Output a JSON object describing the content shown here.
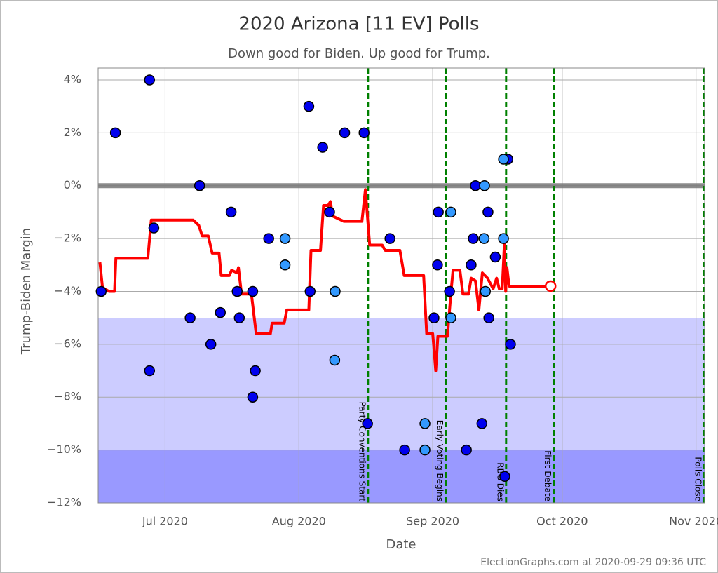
{
  "chart_data": {
    "type": "scatter",
    "title": "2020 Arizona [11 EV] Polls",
    "subtitle": "Down good for Biden. Up good for Trump.",
    "x_label": "Date",
    "y_label": "Trump-Biden Margin",
    "footer": "ElectionGraphs.com at 2020-09-29 09:36 UTC",
    "xlim": [
      167.5,
      308.0
    ],
    "ylim": [
      -12,
      4.45
    ],
    "xticks": [
      {
        "value": 183,
        "label": "Jul 2020"
      },
      {
        "value": 214,
        "label": "Aug 2020"
      },
      {
        "value": 245,
        "label": "Sep 2020"
      },
      {
        "value": 275,
        "label": "Oct 2020"
      },
      {
        "value": 306,
        "label": "Nov 2020"
      }
    ],
    "yticks": [
      {
        "value": 4,
        "label": "4%"
      },
      {
        "value": 2,
        "label": "2%"
      },
      {
        "value": 0,
        "label": "0%"
      },
      {
        "value": -2,
        "label": "−2%"
      },
      {
        "value": -4,
        "label": "−4%"
      },
      {
        "value": -6,
        "label": "−6%"
      },
      {
        "value": -8,
        "label": "−8%"
      },
      {
        "value": -10,
        "label": "−10%"
      },
      {
        "value": -12,
        "label": "−12%"
      }
    ],
    "grid": true,
    "shading": [
      {
        "from": -5,
        "to": -10,
        "color": "#ccccff"
      },
      {
        "from": -10,
        "to": -12,
        "color": "#9999ff"
      }
    ],
    "zero_line": {
      "value": 0,
      "color": "#777777"
    },
    "events": [
      {
        "x": 230,
        "label": "Party Conventions Start"
      },
      {
        "x": 248,
        "label": "Early Voting Begins"
      },
      {
        "x": 262,
        "label": "RBG Dies"
      },
      {
        "x": 273,
        "label": "First Debate"
      },
      {
        "x": 308,
        "label": "Polls Close"
      }
    ],
    "series": [
      {
        "mode": "markers",
        "color": "#0000ee",
        "x": [
          168.2,
          171.5,
          179.4,
          179.4,
          180.4,
          188.8,
          191,
          193.6,
          195.8,
          198.3,
          199.7,
          200.2,
          203.3,
          203.3,
          203.9,
          207,
          216.3,
          216.6,
          219.5,
          221.1,
          224.6,
          229.1,
          229.9,
          235.1,
          238.5,
          245.3,
          246.1,
          246.3,
          248.9,
          252.8,
          253.9,
          254.4,
          254.9,
          256.4,
          257.8,
          258,
          259.5,
          262.4,
          261.7,
          263
        ],
        "y": [
          -4,
          2,
          4,
          -7,
          -1.6,
          -5,
          0,
          -6,
          -4.8,
          -1,
          -4,
          -5,
          -4,
          -8,
          -7,
          -2,
          3,
          -4,
          1.45,
          -1,
          2,
          2,
          -9,
          -2,
          -10,
          -5,
          -3,
          -1,
          -4,
          -10,
          -3,
          -2,
          0,
          -9,
          -1,
          -5,
          -2.7,
          1,
          -11,
          -6
        ]
      },
      {
        "mode": "markers",
        "color": "#3399ff",
        "x": [
          210.8,
          210.8,
          222.4,
          222.3,
          243.2,
          243.2,
          249.2,
          249.2,
          257,
          256.9,
          257.2,
          261.4,
          261.4
        ],
        "y": [
          -2,
          -3,
          -4,
          -6.6,
          -9,
          -10,
          -1,
          -5,
          0,
          -2,
          -4,
          -2,
          1
        ]
      },
      {
        "mode": "line",
        "color": "#ff0000",
        "x": [
          167.9,
          168.5,
          170,
          171.3,
          171.6,
          179,
          179.8,
          189.5,
          190.8,
          191.6,
          193,
          193.9,
          195.5,
          196,
          197.9,
          198.4,
          199.7,
          200,
          200.7,
          203,
          204.1,
          207.4,
          207.8,
          210.6,
          211.2,
          216.3,
          216.8,
          219,
          219.7,
          220.8,
          221.3,
          221.8,
          224.4,
          228.6,
          229.4,
          230.4,
          233.3,
          234,
          237.4,
          238.4,
          242.9,
          243.6,
          245,
          245.7,
          246.2,
          248.4,
          249.2,
          249.7,
          251.3,
          252,
          253.3,
          253.9,
          254.9,
          255.7,
          256.5,
          257.7,
          259,
          259.8,
          260.4,
          261.1,
          261.6,
          261.9,
          262.2,
          262.7,
          272.3
        ],
        "y": [
          -2.9,
          -3.85,
          -4,
          -4,
          -2.75,
          -2.75,
          -1.3,
          -1.3,
          -1.5,
          -1.9,
          -1.9,
          -2.55,
          -2.55,
          -3.4,
          -3.4,
          -3.2,
          -3.3,
          -3.1,
          -4.1,
          -4.1,
          -5.6,
          -5.6,
          -5.2,
          -5.2,
          -4.7,
          -4.7,
          -2.45,
          -2.45,
          -0.75,
          -0.75,
          -0.6,
          -1.15,
          -1.35,
          -1.35,
          -0.15,
          -2.25,
          -2.25,
          -2.45,
          -2.45,
          -3.4,
          -3.4,
          -5.6,
          -5.6,
          -7,
          -5.7,
          -5.7,
          -4.1,
          -3.2,
          -3.2,
          -4.1,
          -4.1,
          -3.5,
          -3.6,
          -4.7,
          -3.3,
          -3.5,
          -3.9,
          -3.5,
          -3.9,
          -3.9,
          -2.2,
          -4,
          -3.1,
          -3.8,
          -3.8
        ]
      }
    ]
  }
}
